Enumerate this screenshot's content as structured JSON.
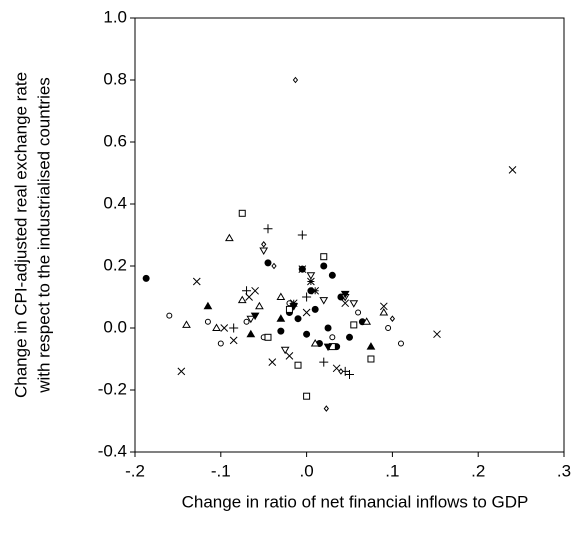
{
  "chart_data": {
    "type": "scatter",
    "x_label": "Change in ratio of net financial inflows to GDP",
    "y_label": [
      "Change in CPI-adjusted real exchange rate",
      "with respect to the industrialised countries"
    ],
    "xlim": [
      -0.2,
      0.3
    ],
    "ylim": [
      -0.4,
      1.0
    ],
    "xticks": [
      {
        "value": -0.2,
        "label": "-.2"
      },
      {
        "value": -0.1,
        "label": "-.1"
      },
      {
        "value": 0,
        "label": ".0"
      },
      {
        "value": 0.1,
        "label": ".1"
      },
      {
        "value": 0.2,
        "label": ".2"
      },
      {
        "value": 0.3,
        "label": ".3"
      }
    ],
    "yticks": [
      {
        "value": -0.4,
        "label": "-0.4"
      },
      -0.2,
      {
        "value": 0,
        "label": "0.0"
      },
      0.2,
      0.4,
      0.6,
      0.8,
      {
        "value": 1,
        "label": "1.0"
      }
    ],
    "series": [
      {
        "marker": "cross",
        "color": "#000000",
        "x": [
          0.24,
          -0.128,
          -0.146,
          0.152,
          -0.085,
          -0.096,
          -0.067,
          -0.06,
          -0.04,
          0.035,
          0.045,
          0.09,
          -0.02,
          0.0
        ],
        "values": [
          0.51,
          0.15,
          -0.14,
          -0.02,
          -0.04,
          0.0,
          0.1,
          0.12,
          -0.11,
          -0.13,
          0.08,
          0.07,
          -0.09,
          0.05
        ]
      },
      {
        "marker": "filled-circle",
        "color": "#000000",
        "x": [
          -0.187,
          -0.045,
          -0.005,
          0.01,
          0.02,
          0.03,
          0.04,
          -0.02,
          0.0,
          0.015,
          -0.01,
          0.025,
          0.05,
          0.065,
          0.005,
          -0.03,
          0.035
        ],
        "values": [
          0.16,
          0.21,
          0.19,
          0.06,
          0.2,
          0.17,
          0.1,
          0.05,
          -0.02,
          -0.05,
          0.03,
          0.0,
          -0.03,
          0.02,
          0.12,
          -0.01,
          -0.06
        ]
      },
      {
        "marker": "open-circle",
        "color": "#000000",
        "x": [
          -0.16,
          -0.115,
          -0.1,
          -0.05,
          0.11,
          0.095,
          -0.02,
          0.03,
          0.06,
          -0.07
        ],
        "values": [
          0.04,
          0.02,
          -0.05,
          -0.03,
          -0.05,
          0.0,
          0.08,
          -0.03,
          0.05,
          0.02
        ]
      },
      {
        "marker": "open-square",
        "color": "#000000",
        "x": [
          -0.075,
          0.02,
          0.0,
          0.075,
          -0.01,
          0.03,
          -0.045,
          0.055,
          -0.02
        ],
        "values": [
          0.37,
          0.23,
          -0.22,
          -0.1,
          -0.12,
          -0.06,
          -0.03,
          0.01,
          0.06
        ]
      },
      {
        "marker": "open-triangle",
        "color": "#000000",
        "x": [
          -0.09,
          -0.055,
          -0.14,
          -0.075,
          -0.105,
          0.07,
          0.09,
          -0.03,
          0.01
        ],
        "values": [
          0.29,
          0.07,
          0.01,
          0.09,
          0.0,
          0.02,
          0.05,
          0.1,
          -0.05
        ]
      },
      {
        "marker": "filled-triangle",
        "color": "#000000",
        "x": [
          -0.115,
          -0.065,
          0.075,
          -0.03
        ],
        "values": [
          0.07,
          -0.02,
          -0.06,
          0.03
        ]
      },
      {
        "marker": "open-down-triangle",
        "color": "#000000",
        "x": [
          -0.05,
          0.005,
          0.02,
          -0.025,
          0.045,
          0.055,
          -0.065
        ],
        "values": [
          0.25,
          0.17,
          0.09,
          -0.07,
          0.1,
          0.08,
          0.03
        ]
      },
      {
        "marker": "filled-down-triangle",
        "color": "#000000",
        "x": [
          -0.06,
          0.045,
          -0.015,
          0.025
        ],
        "values": [
          0.04,
          0.11,
          0.07,
          -0.06
        ]
      },
      {
        "marker": "plus",
        "color": "#000000",
        "x": [
          -0.045,
          -0.005,
          -0.07,
          0.045,
          0.05,
          -0.085,
          0.02,
          0.0
        ],
        "values": [
          0.32,
          0.3,
          0.12,
          -0.14,
          -0.15,
          0.0,
          -0.11,
          0.1
        ]
      },
      {
        "marker": "asterisk",
        "color": "#000000",
        "x": [
          -0.005,
          0.005,
          0.01,
          -0.015
        ],
        "values": [
          0.19,
          0.15,
          0.12,
          0.08
        ]
      },
      {
        "marker": "diamond",
        "color": "#000000",
        "x": [
          -0.013,
          -0.05,
          -0.038,
          0.023,
          0.04,
          0.1
        ],
        "values": [
          0.8,
          0.27,
          0.2,
          -0.26,
          -0.14,
          0.03
        ]
      }
    ]
  }
}
